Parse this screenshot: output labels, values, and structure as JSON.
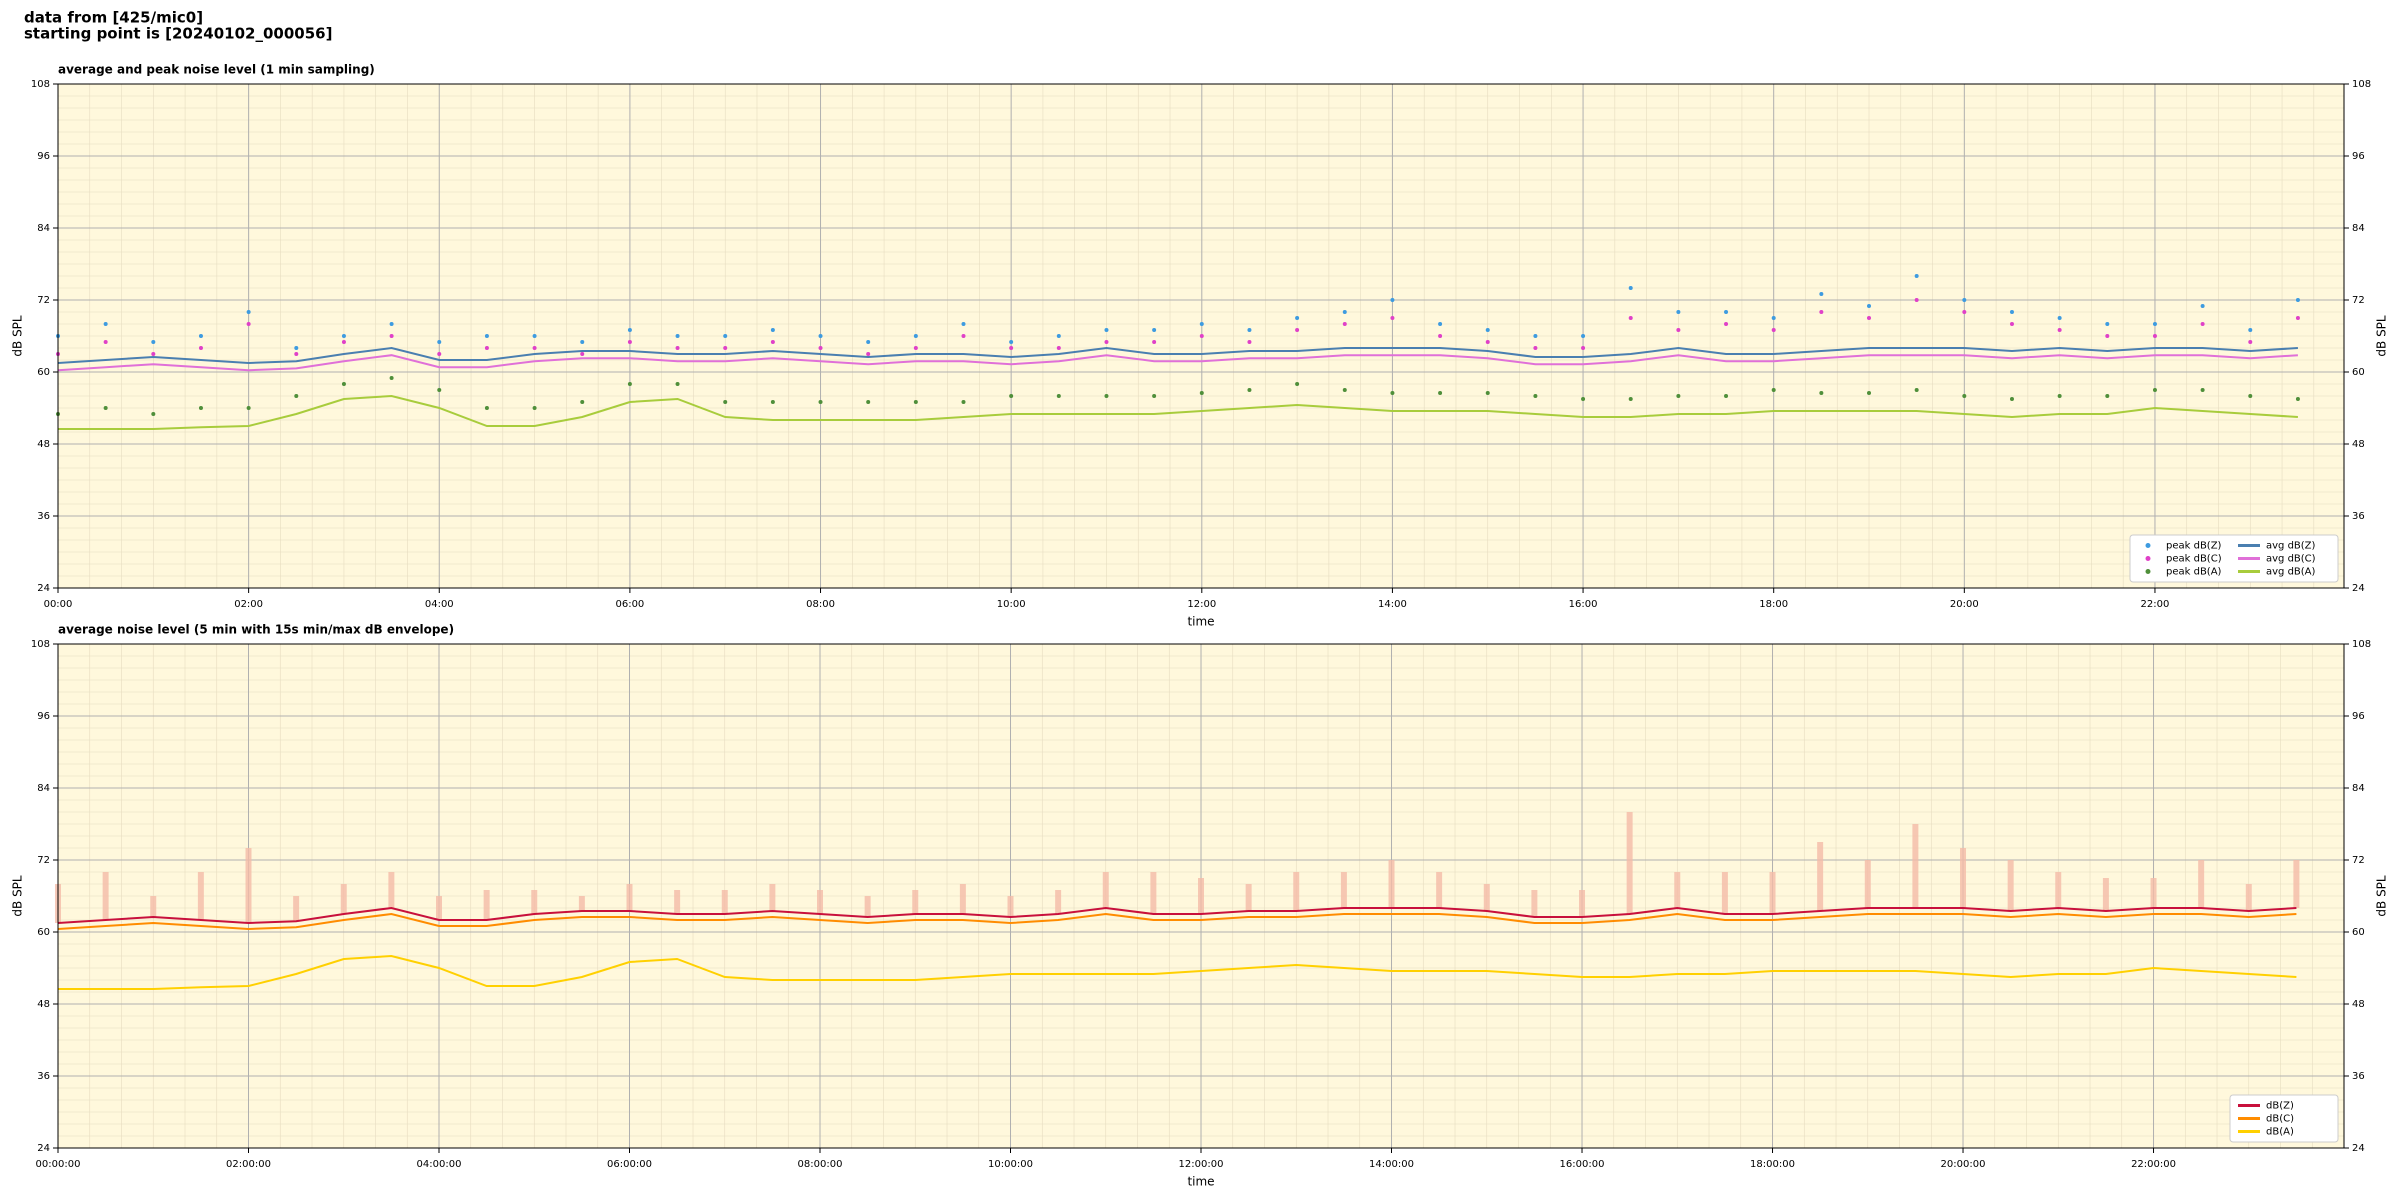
{
  "header": {
    "lines": [
      "data from [425/mic0]",
      "starting point is [20240102_000056]"
    ]
  },
  "chart_data": [
    {
      "type": "line",
      "title": "average and peak noise level (1 min sampling)",
      "xlabel": "time",
      "ylabel": "dB SPL",
      "x": [
        "00:00",
        "00:30",
        "01:00",
        "01:30",
        "02:00",
        "02:30",
        "03:00",
        "03:30",
        "04:00",
        "04:30",
        "05:00",
        "05:30",
        "06:00",
        "06:30",
        "07:00",
        "07:30",
        "08:00",
        "08:30",
        "09:00",
        "09:30",
        "10:00",
        "10:30",
        "11:00",
        "11:30",
        "12:00",
        "12:30",
        "13:00",
        "13:30",
        "14:00",
        "14:30",
        "15:00",
        "15:30",
        "16:00",
        "16:30",
        "17:00",
        "17:30",
        "18:00",
        "18:30",
        "19:00",
        "19:30",
        "20:00",
        "20:30",
        "21:00",
        "21:30",
        "22:00",
        "22:30",
        "23:00",
        "23:30"
      ],
      "xlim": [
        "00:00",
        "23:59"
      ],
      "xticks": [
        "00:00",
        "02:00",
        "04:00",
        "06:00",
        "08:00",
        "10:00",
        "12:00",
        "14:00",
        "16:00",
        "18:00",
        "20:00",
        "22:00"
      ],
      "ylim": [
        24,
        108
      ],
      "yticks": [
        24,
        36,
        48,
        60,
        72,
        84,
        96,
        108
      ],
      "grid": true,
      "legend": "lower right",
      "legend_columns": 2,
      "series": [
        {
          "name": "peak dB(Z)",
          "kind": "scatter",
          "color": "#3d9be0",
          "values": [
            66,
            68,
            65,
            66,
            70,
            64,
            66,
            68,
            65,
            66,
            66,
            65,
            67,
            66,
            66,
            67,
            66,
            65,
            66,
            68,
            65,
            66,
            67,
            67,
            68,
            67,
            69,
            70,
            72,
            68,
            67,
            66,
            66,
            74,
            70,
            70,
            69,
            73,
            71,
            76,
            72,
            70,
            69,
            68,
            68,
            71,
            67,
            72
          ]
        },
        {
          "name": "peak dB(C)",
          "kind": "scatter",
          "color": "#e040c8",
          "values": [
            63,
            65,
            63,
            64,
            68,
            63,
            65,
            66,
            63,
            64,
            64,
            63,
            65,
            64,
            64,
            65,
            64,
            63,
            64,
            66,
            64,
            64,
            65,
            65,
            66,
            65,
            67,
            68,
            69,
            66,
            65,
            64,
            64,
            69,
            67,
            68,
            67,
            70,
            69,
            72,
            70,
            68,
            67,
            66,
            66,
            68,
            65,
            69
          ]
        },
        {
          "name": "peak dB(A)",
          "kind": "scatter",
          "color": "#4f8f3a",
          "values": [
            53,
            54,
            53,
            54,
            54,
            56,
            58,
            59,
            57,
            54,
            54,
            55,
            58,
            58,
            55,
            55,
            55,
            55,
            55,
            55,
            56,
            56,
            56,
            56,
            56.5,
            57,
            58,
            57,
            56.5,
            56.5,
            56.5,
            56,
            55.5,
            55.5,
            56,
            56,
            57,
            56.5,
            56.5,
            57,
            56,
            55.5,
            56,
            56,
            57,
            57,
            56,
            55.5
          ]
        },
        {
          "name": "avg dB(Z)",
          "kind": "line",
          "color": "#4a7fb0",
          "values": [
            61.5,
            62,
            62.5,
            62,
            61.5,
            61.8,
            63,
            64,
            62,
            62,
            63,
            63.5,
            63.5,
            63,
            63,
            63.5,
            63,
            62.5,
            63,
            63,
            62.5,
            63,
            64,
            63,
            63,
            63.5,
            63.5,
            64,
            64,
            64,
            63.5,
            62.5,
            62.5,
            63,
            64,
            63,
            63,
            63.5,
            64,
            64,
            64,
            63.5,
            64,
            63.5,
            64,
            64,
            63.5,
            64
          ]
        },
        {
          "name": "avg dB(C)",
          "kind": "line",
          "color": "#e070d8",
          "values": [
            60.3,
            60.8,
            61.3,
            60.8,
            60.3,
            60.6,
            61.8,
            62.8,
            60.8,
            60.8,
            61.8,
            62.3,
            62.3,
            61.8,
            61.8,
            62.3,
            61.8,
            61.3,
            61.8,
            61.8,
            61.3,
            61.8,
            62.8,
            61.8,
            61.8,
            62.3,
            62.3,
            62.8,
            62.8,
            62.8,
            62.3,
            61.3,
            61.3,
            61.8,
            62.8,
            61.8,
            61.8,
            62.3,
            62.8,
            62.8,
            62.8,
            62.3,
            62.8,
            62.3,
            62.8,
            62.8,
            62.3,
            62.8
          ]
        },
        {
          "name": "avg dB(A)",
          "kind": "line",
          "color": "#a8cc3c",
          "values": [
            50.5,
            50.5,
            50.5,
            50.8,
            51,
            53,
            55.5,
            56,
            54,
            51,
            51,
            52.5,
            55,
            55.5,
            52.5,
            52,
            52,
            52,
            52,
            52.5,
            53,
            53,
            53,
            53,
            53.5,
            54,
            54.5,
            54,
            53.5,
            53.5,
            53.5,
            53,
            52.5,
            52.5,
            53,
            53,
            53.5,
            53.5,
            53.5,
            53.5,
            53,
            52.5,
            53,
            53,
            54,
            53.5,
            53,
            52.5
          ]
        }
      ]
    },
    {
      "type": "line",
      "title": "average noise level (5 min with 15s min/max dB envelope)",
      "xlabel": "time",
      "ylabel": "dB SPL",
      "x": [
        "00:00:00",
        "00:30:00",
        "01:00:00",
        "01:30:00",
        "02:00:00",
        "02:30:00",
        "03:00:00",
        "03:30:00",
        "04:00:00",
        "04:30:00",
        "05:00:00",
        "05:30:00",
        "06:00:00",
        "06:30:00",
        "07:00:00",
        "07:30:00",
        "08:00:00",
        "08:30:00",
        "09:00:00",
        "09:30:00",
        "10:00:00",
        "10:30:00",
        "11:00:00",
        "11:30:00",
        "12:00:00",
        "12:30:00",
        "13:00:00",
        "13:30:00",
        "14:00:00",
        "14:30:00",
        "15:00:00",
        "15:30:00",
        "16:00:00",
        "16:30:00",
        "17:00:00",
        "17:30:00",
        "18:00:00",
        "18:30:00",
        "19:00:00",
        "19:30:00",
        "20:00:00",
        "20:30:00",
        "21:00:00",
        "21:30:00",
        "22:00:00",
        "22:30:00",
        "23:00:00",
        "23:30:00"
      ],
      "xlim": [
        "00:00:00",
        "23:59:59"
      ],
      "xticks": [
        "00:00:00",
        "02:00:00",
        "04:00:00",
        "06:00:00",
        "08:00:00",
        "10:00:00",
        "12:00:00",
        "14:00:00",
        "16:00:00",
        "18:00:00",
        "20:00:00",
        "22:00:00"
      ],
      "ylim": [
        24,
        108
      ],
      "yticks": [
        24,
        36,
        48,
        60,
        72,
        84,
        96,
        108
      ],
      "grid": true,
      "legend": "lower right",
      "legend_columns": 1,
      "envelope_color": "#f5bca8",
      "envelope_max": [
        68,
        70,
        66,
        70,
        74,
        66,
        68,
        70,
        66,
        67,
        67,
        66,
        68,
        67,
        67,
        68,
        67,
        66,
        67,
        68,
        66,
        67,
        70,
        70,
        69,
        68,
        70,
        70,
        72,
        70,
        68,
        67,
        67,
        80,
        70,
        70,
        70,
        75,
        72,
        78,
        74,
        72,
        70,
        69,
        69,
        72,
        68,
        72
      ],
      "series": [
        {
          "name": "dB(Z)",
          "kind": "line",
          "color": "#c8103c",
          "values": [
            61.5,
            62,
            62.5,
            62,
            61.5,
            61.8,
            63,
            64,
            62,
            62,
            63,
            63.5,
            63.5,
            63,
            63,
            63.5,
            63,
            62.5,
            63,
            63,
            62.5,
            63,
            64,
            63,
            63,
            63.5,
            63.5,
            64,
            64,
            64,
            63.5,
            62.5,
            62.5,
            63,
            64,
            63,
            63,
            63.5,
            64,
            64,
            64,
            63.5,
            64,
            63.5,
            64,
            64,
            63.5,
            64
          ]
        },
        {
          "name": "dB(C)",
          "kind": "line",
          "color": "#ff8c00",
          "values": [
            60.5,
            61,
            61.5,
            61,
            60.5,
            60.8,
            62,
            63,
            61,
            61,
            62,
            62.5,
            62.5,
            62,
            62,
            62.5,
            62,
            61.5,
            62,
            62,
            61.5,
            62,
            63,
            62,
            62,
            62.5,
            62.5,
            63,
            63,
            63,
            62.5,
            61.5,
            61.5,
            62,
            63,
            62,
            62,
            62.5,
            63,
            63,
            63,
            62.5,
            63,
            62.5,
            63,
            63,
            62.5,
            63
          ]
        },
        {
          "name": "dB(A)",
          "kind": "line",
          "color": "#ffd000",
          "values": [
            50.5,
            50.5,
            50.5,
            50.8,
            51,
            53,
            55.5,
            56,
            54,
            51,
            51,
            52.5,
            55,
            55.5,
            52.5,
            52,
            52,
            52,
            52,
            52.5,
            53,
            53,
            53,
            53,
            53.5,
            54,
            54.5,
            54,
            53.5,
            53.5,
            53.5,
            53,
            52.5,
            52.5,
            53,
            53,
            53.5,
            53.5,
            53.5,
            53.5,
            53,
            52.5,
            53,
            53,
            54,
            53.5,
            53,
            52.5
          ]
        }
      ]
    }
  ]
}
